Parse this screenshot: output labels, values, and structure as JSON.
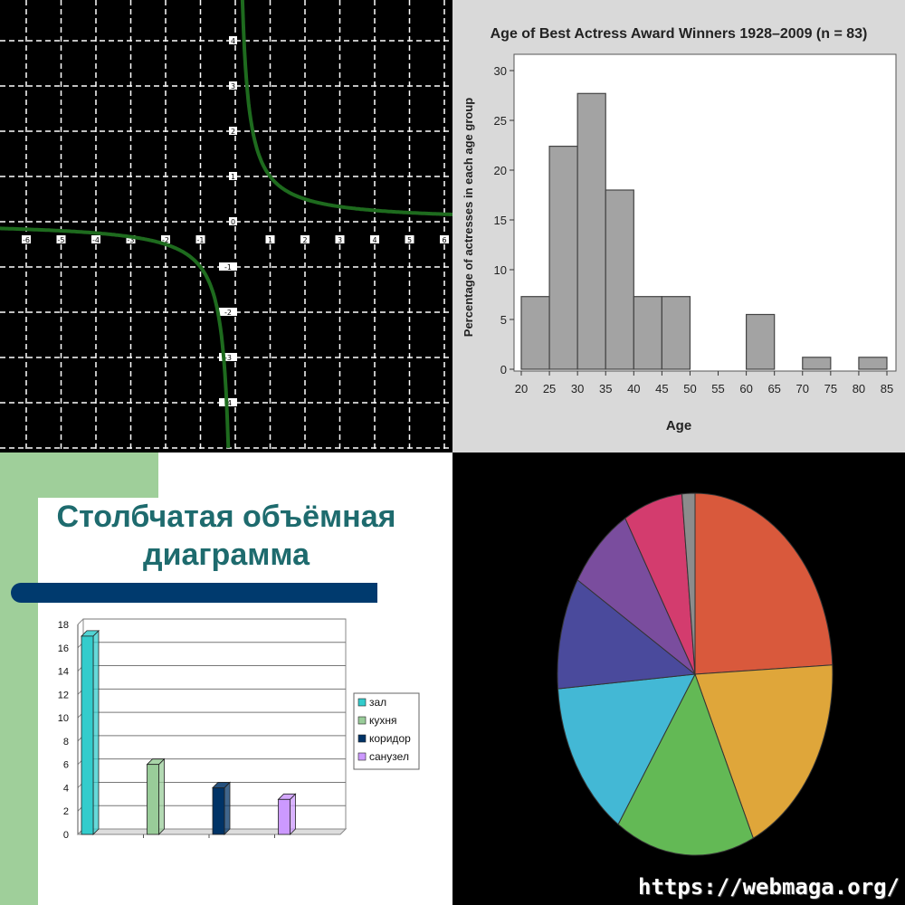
{
  "chart_data": [
    {
      "type": "line",
      "title": "",
      "xlabel": "",
      "ylabel": "",
      "function": "y = 1/x",
      "xlim": [
        -7,
        6
      ],
      "ylim": [
        -5,
        5
      ],
      "grid": true,
      "x_tick_labels": [
        "-6",
        "-5",
        "-4",
        "-3",
        "-2",
        "-1",
        "1",
        "2",
        "3",
        "4",
        "5",
        "6"
      ],
      "y_tick_labels": [
        "4",
        "3",
        "2",
        "1",
        "0",
        "-1",
        "-2",
        "-3",
        "-4"
      ],
      "colors": {
        "background": "#000000",
        "curve": "#1e6b1e",
        "grid": "#ffffff"
      }
    },
    {
      "type": "bar",
      "title": "Age of Best Actress Award Winners 1928–2009 (n = 83)",
      "xlabel": "Age",
      "ylabel": "Percentage of actresses in each age group",
      "bins": [
        [
          20,
          25
        ],
        [
          25,
          30
        ],
        [
          30,
          35
        ],
        [
          35,
          40
        ],
        [
          40,
          45
        ],
        [
          45,
          50
        ],
        [
          50,
          55
        ],
        [
          55,
          60
        ],
        [
          60,
          65
        ],
        [
          65,
          70
        ],
        [
          70,
          75
        ],
        [
          75,
          80
        ],
        [
          80,
          85
        ]
      ],
      "values": [
        7.3,
        22.4,
        27.7,
        18.0,
        7.3,
        7.3,
        0,
        0,
        5.5,
        0,
        1.2,
        0,
        1.2
      ],
      "x_tick_labels": [
        "20",
        "25",
        "30",
        "35",
        "40",
        "45",
        "50",
        "55",
        "60",
        "65",
        "70",
        "75",
        "80",
        "85"
      ],
      "y_tick_labels": [
        "0",
        "5",
        "10",
        "15",
        "20",
        "25",
        "30"
      ],
      "ylim": [
        0,
        30
      ],
      "grid": false,
      "colors": {
        "bar": "#a3a3a3",
        "edge": "#444444",
        "panel": "#d9d9d9"
      }
    },
    {
      "type": "bar",
      "title": "Столбчатая объёмная диаграмма",
      "categories": [
        "зал",
        "кухня",
        "коридор",
        "санузел"
      ],
      "values": [
        17,
        6,
        4,
        3
      ],
      "ylim": [
        0,
        18
      ],
      "y_tick_labels": [
        "0",
        "2",
        "4",
        "6",
        "8",
        "10",
        "12",
        "14",
        "16",
        "18"
      ],
      "legend": "right",
      "grid": true,
      "colors": {
        "зал": "#33cccc",
        "кухня": "#99cc99",
        "коридор": "#003366",
        "санузел": "#cc99ff",
        "title": "#1e6b6e",
        "bar_band": "#003a6e",
        "side_panel": "#9fcf9a"
      }
    },
    {
      "type": "pie",
      "title": "",
      "values": [
        25.4,
        19.8,
        17.2,
        15.0,
        10.5,
        8.2,
        7.3,
        1.6
      ],
      "slice_colors": [
        "#d9593c",
        "#dfa63a",
        "#63b955",
        "#43b8d5",
        "#4a4a9c",
        "#7a4d9e",
        "#d33c6e",
        "#8c8c8c"
      ],
      "colors": {
        "background": "#000000"
      }
    }
  ],
  "watermark": "https://webmaga.org/"
}
